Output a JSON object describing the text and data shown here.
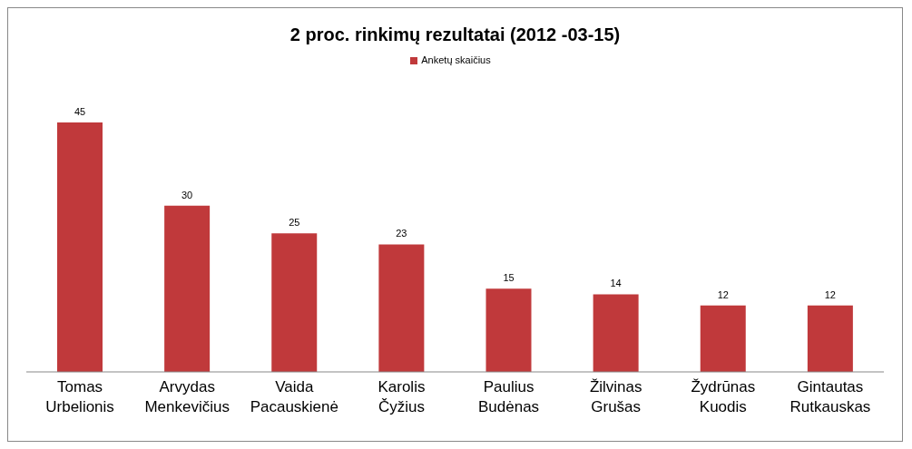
{
  "chart_data": {
    "type": "bar",
    "title": "2 proc. rinkimų rezultatai (2012 -03-15)",
    "categories": [
      "Tomas Urbelionis",
      "Arvydas Menkevičius",
      "Vaida Pacauskienė",
      "Karolis Čyžius",
      "Paulius Budėnas",
      "Žilvinas Grušas",
      "Žydrūnas Kuodis",
      "Gintautas Rutkauskas"
    ],
    "series": [
      {
        "name": "Anketų skaičius",
        "color": "#c0393b",
        "values": [
          45,
          30,
          25,
          23,
          15,
          14,
          12,
          12
        ]
      }
    ],
    "data_labels": true,
    "legend": "top",
    "grid": false
  }
}
